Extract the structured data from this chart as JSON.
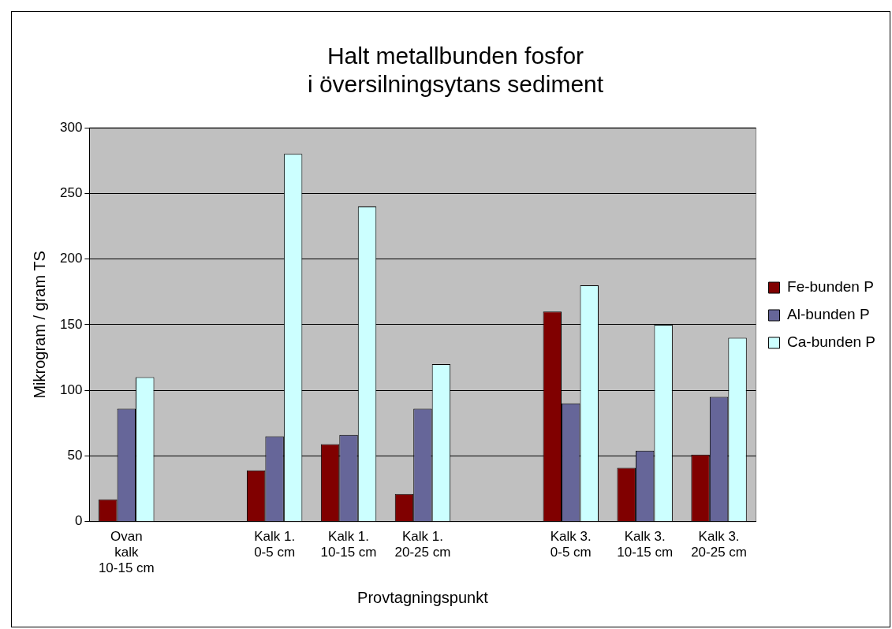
{
  "chart_data": {
    "type": "bar",
    "title": "Halt metallbunden fosfor\ni översilningsytans sediment",
    "xlabel": "Provtagningspunkt",
    "ylabel": "Mikrogram / gram TS",
    "categories": [
      "Ovan kalk 10-15 cm",
      null,
      "Kalk 1. 0-5 cm",
      "Kalk 1. 10-15 cm",
      "Kalk 1. 20-25 cm",
      null,
      "Kalk 3. 0-5 cm",
      "Kalk 3. 10-15 cm",
      "Kalk 3. 20-25 cm"
    ],
    "series": [
      {
        "name": "Fe-bunden P",
        "color": "#800000",
        "values": [
          17,
          null,
          39,
          59,
          21,
          null,
          160,
          41,
          51
        ]
      },
      {
        "name": "Al-bunden P",
        "color": "#666699",
        "values": [
          86,
          null,
          65,
          66,
          86,
          null,
          90,
          54,
          95
        ]
      },
      {
        "name": "Ca-bunden P",
        "color": "#ccffff",
        "values": [
          110,
          null,
          280,
          240,
          120,
          null,
          180,
          150,
          140
        ]
      }
    ],
    "ylim": [
      0,
      300
    ],
    "yticks": [
      0,
      50,
      100,
      150,
      200,
      250,
      300
    ],
    "grid": "y",
    "legend": "right"
  }
}
